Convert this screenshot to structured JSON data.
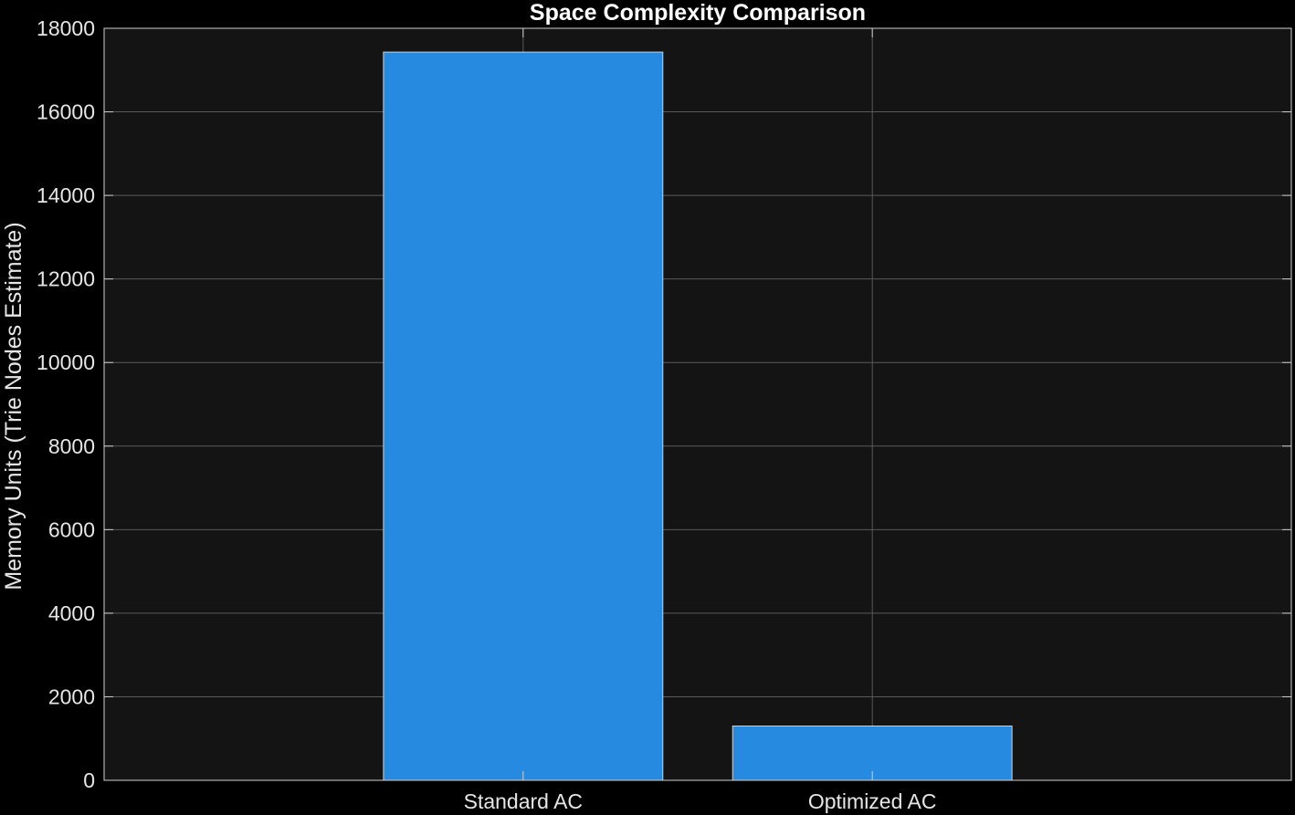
{
  "chart_data": {
    "type": "bar",
    "title": "Space Complexity Comparison",
    "xlabel": "",
    "ylabel": "Memory Units (Trie Nodes Estimate)",
    "categories": [
      "Standard AC",
      "Optimized AC"
    ],
    "values": [
      17430,
      1300
    ],
    "ylim": [
      0,
      18000
    ],
    "yticks": [
      0,
      2000,
      4000,
      6000,
      8000,
      10000,
      12000,
      14000,
      16000,
      18000
    ],
    "grid": true,
    "legend": "none",
    "colors": {
      "bar": "#268BE0",
      "bar_edge": "#d0d0d0",
      "plot_background": "#141414",
      "figure_background": "#000000",
      "grid": "#5a5a5a",
      "axes": "#cfcfcf",
      "text": "#e6e6e6"
    }
  }
}
